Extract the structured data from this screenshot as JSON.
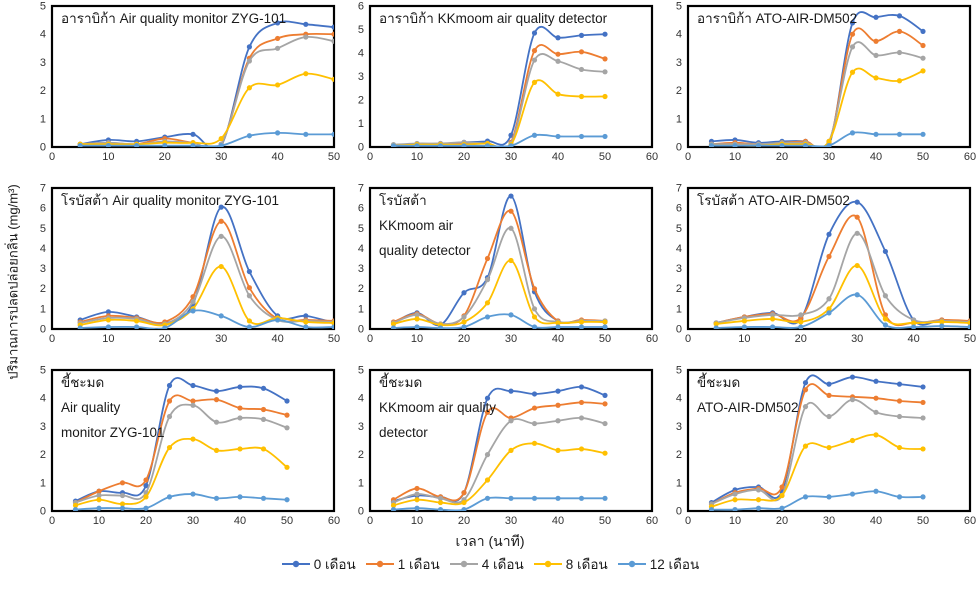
{
  "figure": {
    "y_axis_label": "ปริมาณการปลดปล่อยกลิ่น (mg/m³)",
    "x_axis_label": "เวลา (นาที)"
  },
  "legend": {
    "position": "bottom",
    "entries": [
      {
        "label": "0 เดือน",
        "color": "#4472C4"
      },
      {
        "label": "1 เดือน",
        "color": "#ED7D31"
      },
      {
        "label": "4 เดือน",
        "color": "#A5A5A5"
      },
      {
        "label": "8 เดือน",
        "color": "#FFC000"
      },
      {
        "label": "12 เดือน",
        "color": "#5B9BD5"
      }
    ]
  },
  "chart_data": [
    {
      "type": "line",
      "title_lines": [
        "อาราบิก้า Air quality monitor ZYG-101"
      ],
      "x": [
        5,
        10,
        15,
        20,
        25,
        30,
        35,
        40,
        45,
        50
      ],
      "xlim": [
        0,
        50
      ],
      "ylim": [
        0,
        5
      ],
      "grid": false,
      "series": [
        {
          "name": "0 เดือน",
          "values": [
            0.1,
            0.25,
            0.2,
            0.35,
            0.45,
            0.05,
            3.55,
            4.4,
            4.35,
            4.25
          ]
        },
        {
          "name": "1 เดือน",
          "values": [
            0.1,
            0.15,
            0.1,
            0.3,
            0.15,
            0.1,
            3.15,
            3.85,
            4.0,
            4.0
          ]
        },
        {
          "name": "4 เดือน",
          "values": [
            0.1,
            0.15,
            0.1,
            0.2,
            0.15,
            0.1,
            3.05,
            3.5,
            3.9,
            3.75
          ]
        },
        {
          "name": "8 เดือน",
          "values": [
            0.1,
            0.1,
            0.1,
            0.15,
            0.15,
            0.3,
            2.1,
            2.2,
            2.6,
            2.4
          ]
        },
        {
          "name": "12 เดือน",
          "values": [
            0.05,
            0.05,
            0.05,
            0.05,
            0.05,
            0.05,
            0.4,
            0.5,
            0.45,
            0.45
          ]
        }
      ]
    },
    {
      "type": "line",
      "title_lines": [
        "อาราบิก้า KKmoom air quality detector"
      ],
      "x": [
        5,
        10,
        15,
        20,
        25,
        30,
        35,
        40,
        45,
        50
      ],
      "xlim": [
        0,
        60
      ],
      "ylim": [
        0,
        6
      ],
      "grid": false,
      "series": [
        {
          "name": "0 เดือน",
          "values": [
            0.05,
            0.1,
            0.1,
            0.2,
            0.25,
            0.5,
            4.85,
            4.65,
            4.75,
            4.8
          ]
        },
        {
          "name": "1 เดือน",
          "values": [
            0.05,
            0.1,
            0.15,
            0.15,
            0.15,
            0.2,
            4.1,
            3.95,
            4.05,
            3.75
          ]
        },
        {
          "name": "4 เดือน",
          "values": [
            0.1,
            0.15,
            0.15,
            0.2,
            0.15,
            0.15,
            3.7,
            3.65,
            3.3,
            3.2
          ]
        },
        {
          "name": "8 เดือน",
          "values": [
            0.05,
            0.1,
            0.1,
            0.1,
            0.15,
            0.1,
            2.75,
            2.25,
            2.15,
            2.15
          ]
        },
        {
          "name": "12 เดือน",
          "values": [
            0.05,
            0.05,
            0.05,
            0.05,
            0.05,
            0.05,
            0.5,
            0.45,
            0.45,
            0.45
          ]
        }
      ]
    },
    {
      "type": "line",
      "title_lines": [
        "อาราบิก้า ATO-AIR-DM502"
      ],
      "x": [
        5,
        10,
        15,
        20,
        25,
        30,
        35,
        40,
        45,
        50
      ],
      "xlim": [
        0,
        60
      ],
      "ylim": [
        0,
        5
      ],
      "grid": false,
      "series": [
        {
          "name": "0 เดือน",
          "values": [
            0.2,
            0.25,
            0.15,
            0.2,
            0.2,
            0.05,
            4.4,
            4.6,
            4.65,
            4.1
          ]
        },
        {
          "name": "1 เดือน",
          "values": [
            0.1,
            0.15,
            0.1,
            0.15,
            0.2,
            0.15,
            4.0,
            3.75,
            4.1,
            3.6
          ]
        },
        {
          "name": "4 เดือน",
          "values": [
            0.1,
            0.1,
            0.1,
            0.15,
            0.15,
            0.2,
            3.55,
            3.25,
            3.35,
            3.15
          ]
        },
        {
          "name": "8 เดือน",
          "values": [
            0.05,
            0.05,
            0.05,
            0.1,
            0.1,
            0.2,
            2.65,
            2.45,
            2.35,
            2.7
          ]
        },
        {
          "name": "12 เดือน",
          "values": [
            0.05,
            0.05,
            0.05,
            0.05,
            0.05,
            0.05,
            0.5,
            0.45,
            0.45,
            0.45
          ]
        }
      ]
    },
    {
      "type": "line",
      "title_lines": [
        "โรบัสต้า Air quality monitor ZYG-101"
      ],
      "x": [
        5,
        10,
        15,
        20,
        25,
        30,
        35,
        40,
        45,
        50
      ],
      "xlim": [
        0,
        50
      ],
      "ylim": [
        0,
        7
      ],
      "grid": false,
      "series": [
        {
          "name": "0 เดือน",
          "values": [
            0.45,
            0.85,
            0.6,
            0.3,
            1.25,
            6.05,
            2.85,
            0.65,
            0.65,
            0.3
          ]
        },
        {
          "name": "1 เดือน",
          "values": [
            0.35,
            0.65,
            0.55,
            0.35,
            1.6,
            5.35,
            2.05,
            0.5,
            0.45,
            0.4
          ]
        },
        {
          "name": "4 เดือน",
          "values": [
            0.3,
            0.55,
            0.5,
            0.25,
            1.35,
            4.6,
            1.65,
            0.45,
            0.4,
            0.35
          ]
        },
        {
          "name": "8 เดือน",
          "values": [
            0.2,
            0.45,
            0.4,
            0.2,
            1.0,
            3.1,
            0.4,
            0.55,
            0.35,
            0.3
          ]
        },
        {
          "name": "12 เดือน",
          "values": [
            0.05,
            0.1,
            0.1,
            0.05,
            0.9,
            0.65,
            0.1,
            0.45,
            0.1,
            0.1
          ]
        }
      ]
    },
    {
      "type": "line",
      "title_lines": [
        "โรบัสต้า",
        "KKmoom air",
        "quality detector"
      ],
      "x": [
        5,
        10,
        15,
        20,
        25,
        30,
        35,
        40,
        45,
        50
      ],
      "xlim": [
        0,
        60
      ],
      "ylim": [
        0,
        7
      ],
      "grid": false,
      "series": [
        {
          "name": "0 เดือน",
          "values": [
            0.3,
            0.8,
            0.2,
            1.8,
            2.55,
            6.6,
            1.85,
            0.4,
            0.4,
            0.35
          ]
        },
        {
          "name": "1 เดือน",
          "values": [
            0.35,
            0.75,
            0.25,
            0.65,
            3.5,
            5.85,
            2.0,
            0.4,
            0.45,
            0.4
          ]
        },
        {
          "name": "4 เดือน",
          "values": [
            0.3,
            0.7,
            0.25,
            0.6,
            2.45,
            5.0,
            1.0,
            0.35,
            0.4,
            0.4
          ]
        },
        {
          "name": "8 เดือน",
          "values": [
            0.25,
            0.5,
            0.2,
            0.35,
            1.3,
            3.4,
            0.6,
            0.3,
            0.35,
            0.35
          ]
        },
        {
          "name": "12 เดือน",
          "values": [
            0.05,
            0.1,
            0.05,
            0.1,
            0.6,
            0.7,
            0.1,
            0.1,
            0.1,
            0.1
          ]
        }
      ]
    },
    {
      "type": "line",
      "title_lines": [
        "โรบัสต้า ATO-AIR-DM502"
      ],
      "x": [
        5,
        10,
        15,
        20,
        25,
        30,
        35,
        40,
        45,
        50
      ],
      "xlim": [
        0,
        50
      ],
      "ylim": [
        0,
        7
      ],
      "grid": false,
      "series": [
        {
          "name": "0 เดือน",
          "values": [
            0.3,
            0.6,
            0.8,
            0.5,
            4.7,
            6.3,
            3.85,
            0.45,
            0.45,
            0.35
          ]
        },
        {
          "name": "1 เดือน",
          "values": [
            0.3,
            0.6,
            0.75,
            0.55,
            3.6,
            5.55,
            0.7,
            0.3,
            0.45,
            0.4
          ]
        },
        {
          "name": "4 เดือน",
          "values": [
            0.3,
            0.55,
            0.7,
            0.7,
            1.5,
            4.75,
            1.65,
            0.45,
            0.4,
            0.35
          ]
        },
        {
          "name": "8 เดือน",
          "values": [
            0.25,
            0.4,
            0.5,
            0.35,
            1.0,
            3.15,
            0.5,
            0.3,
            0.35,
            0.3
          ]
        },
        {
          "name": "12 เดือน",
          "values": [
            0.05,
            0.1,
            0.1,
            0.1,
            0.8,
            1.7,
            0.2,
            0.1,
            0.15,
            0.1
          ]
        }
      ]
    },
    {
      "type": "line",
      "title_lines": [
        "ขี้ชะมด",
        "Air quality",
        "monitor ZYG-101"
      ],
      "x": [
        5,
        10,
        15,
        20,
        25,
        30,
        35,
        40,
        45,
        50
      ],
      "xlim": [
        0,
        60
      ],
      "ylim": [
        0,
        5
      ],
      "grid": false,
      "series": [
        {
          "name": "0 เดือน",
          "values": [
            0.35,
            0.7,
            0.65,
            0.9,
            4.45,
            4.45,
            4.25,
            4.4,
            4.35,
            3.9
          ]
        },
        {
          "name": "1 เดือน",
          "values": [
            0.3,
            0.7,
            1.0,
            1.1,
            3.9,
            3.9,
            3.95,
            3.65,
            3.6,
            3.4
          ]
        },
        {
          "name": "4 เดือน",
          "values": [
            0.3,
            0.55,
            0.55,
            0.65,
            3.35,
            3.75,
            3.15,
            3.3,
            3.25,
            2.95
          ]
        },
        {
          "name": "8 เดือน",
          "values": [
            0.2,
            0.4,
            0.25,
            0.5,
            2.25,
            2.55,
            2.15,
            2.2,
            2.2,
            1.55
          ]
        },
        {
          "name": "12 เดือน",
          "values": [
            0.05,
            0.1,
            0.1,
            0.1,
            0.5,
            0.6,
            0.45,
            0.5,
            0.45,
            0.4
          ]
        }
      ]
    },
    {
      "type": "line",
      "title_lines": [
        "ขี้ชะมด",
        "KKmoom air quality",
        "detector"
      ],
      "x": [
        5,
        10,
        15,
        20,
        25,
        30,
        35,
        40,
        45,
        50
      ],
      "xlim": [
        0,
        60
      ],
      "ylim": [
        0,
        5
      ],
      "grid": false,
      "series": [
        {
          "name": "0 เดือน",
          "values": [
            0.35,
            0.55,
            0.5,
            0.65,
            4.0,
            4.25,
            4.15,
            4.25,
            4.4,
            4.1
          ]
        },
        {
          "name": "1 เดือน",
          "values": [
            0.4,
            0.8,
            0.5,
            0.65,
            3.5,
            3.3,
            3.65,
            3.75,
            3.85,
            3.8
          ]
        },
        {
          "name": "4 เดือน",
          "values": [
            0.3,
            0.6,
            0.45,
            0.4,
            2.0,
            3.2,
            3.1,
            3.2,
            3.3,
            3.1
          ]
        },
        {
          "name": "8 เดือน",
          "values": [
            0.2,
            0.4,
            0.3,
            0.3,
            1.1,
            2.15,
            2.4,
            2.15,
            2.2,
            2.05
          ]
        },
        {
          "name": "12 เดือน",
          "values": [
            0.05,
            0.1,
            0.05,
            0.05,
            0.45,
            0.45,
            0.45,
            0.45,
            0.45,
            0.45
          ]
        }
      ]
    },
    {
      "type": "line",
      "title_lines": [
        "ขี้ชะมด",
        "ATO-AIR-DM502"
      ],
      "x": [
        5,
        10,
        15,
        20,
        25,
        30,
        35,
        40,
        45,
        50
      ],
      "xlim": [
        0,
        60
      ],
      "ylim": [
        0,
        5
      ],
      "grid": false,
      "series": [
        {
          "name": "0 เดือน",
          "values": [
            0.3,
            0.75,
            0.85,
            0.7,
            4.55,
            4.5,
            4.75,
            4.6,
            4.5,
            4.4
          ]
        },
        {
          "name": "1 เดือน",
          "values": [
            0.25,
            0.65,
            0.8,
            0.85,
            4.3,
            4.1,
            4.05,
            4.0,
            3.9,
            3.85
          ]
        },
        {
          "name": "4 เดือน",
          "values": [
            0.25,
            0.6,
            0.75,
            0.55,
            3.7,
            3.35,
            3.95,
            3.5,
            3.35,
            3.3
          ]
        },
        {
          "name": "8 เดือน",
          "values": [
            0.15,
            0.4,
            0.4,
            0.55,
            2.3,
            2.25,
            2.5,
            2.7,
            2.25,
            2.2
          ]
        },
        {
          "name": "12 เดือน",
          "values": [
            0.05,
            0.05,
            0.1,
            0.1,
            0.5,
            0.5,
            0.6,
            0.7,
            0.5,
            0.5
          ]
        }
      ]
    }
  ]
}
